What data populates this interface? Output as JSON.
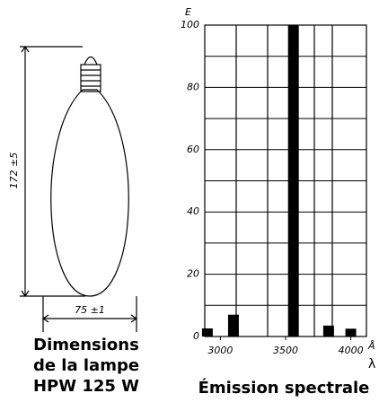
{
  "chart_data": {
    "type": "bar",
    "title": "Émission spectrale",
    "y_label": "E",
    "x_label": "Å",
    "x_symbol": "λ",
    "x": [
      2900,
      3100,
      3560,
      3830,
      4000
    ],
    "values": [
      2.6,
      7,
      100,
      3.5,
      2.5
    ],
    "xlim": [
      2880,
      4120
    ],
    "xticks": [
      3000,
      3500,
      4000
    ],
    "ylim": [
      0,
      100
    ],
    "yticks": [
      0,
      20,
      40,
      60,
      80,
      100
    ],
    "color": "#000000",
    "grid": true
  },
  "drawing": {
    "height_label": "172 ±5",
    "width_label": "75 ±1",
    "caption": [
      "Dimensions",
      "de la lampe",
      "HPW 125 W"
    ]
  }
}
